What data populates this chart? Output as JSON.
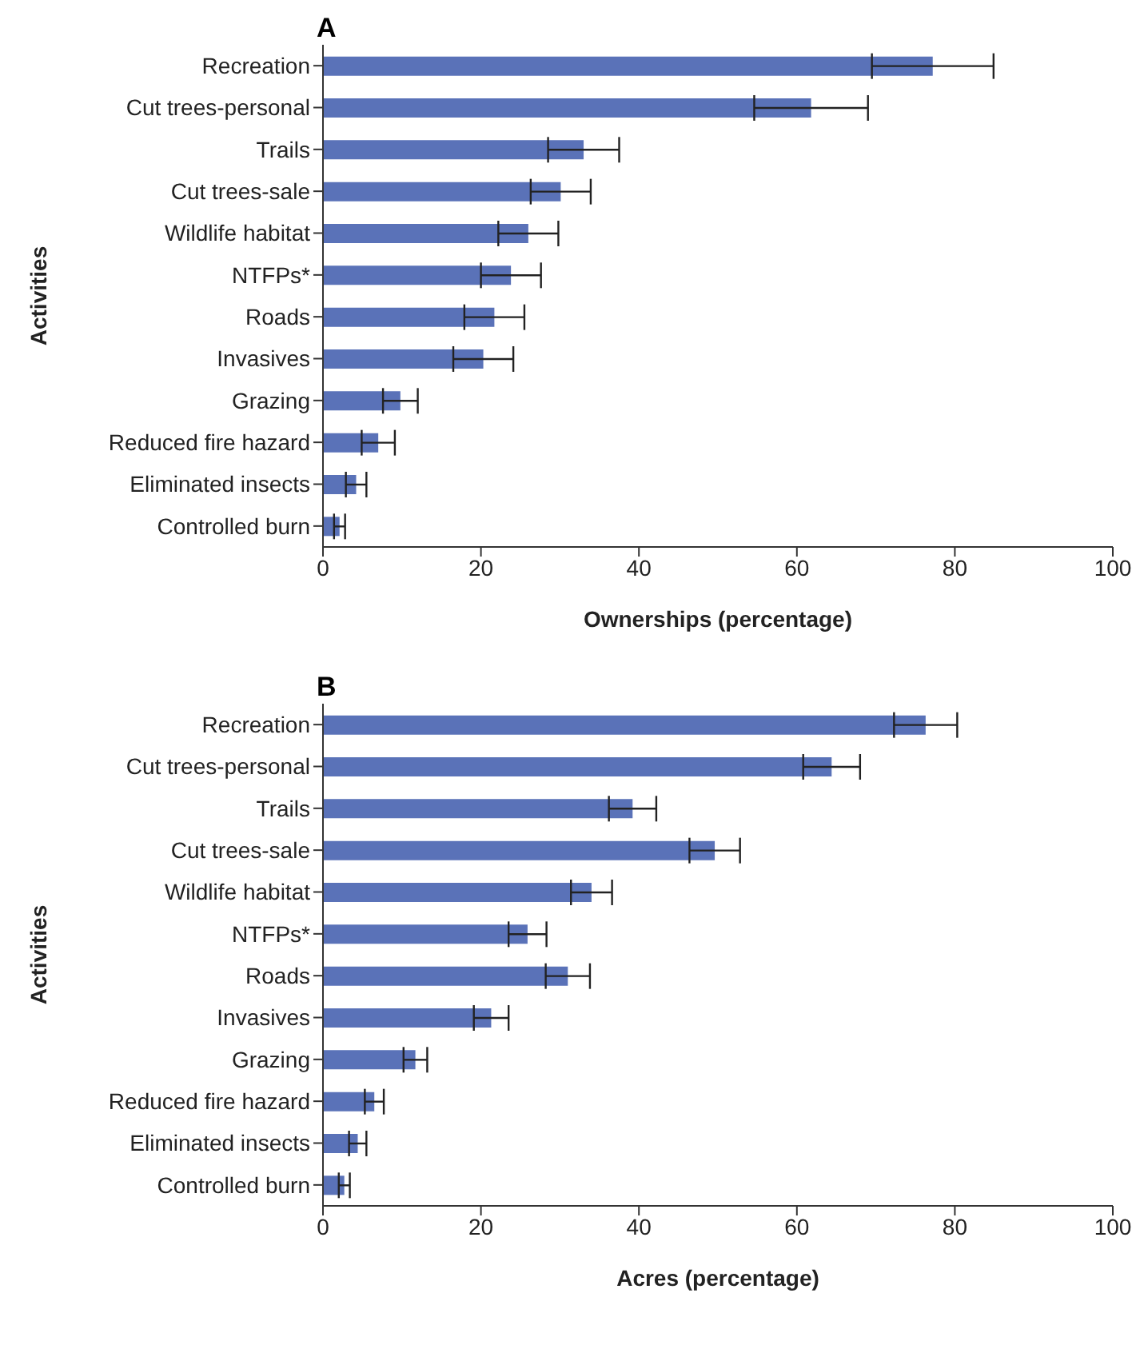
{
  "chart_data": [
    {
      "type": "bar",
      "orientation": "horizontal",
      "title": "A",
      "xlabel": "Ownerships (percentage)",
      "ylabel": "Activities",
      "categories": [
        "Recreation",
        "Cut trees-personal",
        "Trails",
        "Cut trees-sale",
        "Wildlife habitat",
        "NTFPs*",
        "Roads",
        "Invasives",
        "Grazing",
        "Reduced fire hazard",
        "Eliminated insects",
        "Controlled burn"
      ],
      "values": [
        77.2,
        61.8,
        33.0,
        30.1,
        26.0,
        23.8,
        21.7,
        20.3,
        9.8,
        7.0,
        4.2,
        2.1
      ],
      "errors": [
        7.7,
        7.2,
        4.5,
        3.8,
        3.8,
        3.8,
        3.8,
        3.8,
        2.2,
        2.1,
        1.3,
        0.7
      ],
      "color": "#5a72b8",
      "xlim": [
        0,
        100
      ],
      "xticks": [
        0,
        20,
        40,
        60,
        80,
        100
      ],
      "grid": false
    },
    {
      "type": "bar",
      "orientation": "horizontal",
      "title": "B",
      "xlabel": "Acres (percentage)",
      "ylabel": "Activities",
      "categories": [
        "Recreation",
        "Cut trees-personal",
        "Trails",
        "Cut trees-sale",
        "Wildlife habitat",
        "NTFPs*",
        "Roads",
        "Invasives",
        "Grazing",
        "Reduced fire hazard",
        "Eliminated insects",
        "Controlled burn"
      ],
      "values": [
        76.3,
        64.4,
        39.2,
        49.6,
        34.0,
        25.9,
        31.0,
        21.3,
        11.7,
        6.5,
        4.4,
        2.7
      ],
      "errors": [
        4,
        3.6,
        3,
        3.2,
        2.6,
        2.4,
        2.8,
        2.2,
        1.5,
        1.2,
        1.1,
        0.7
      ],
      "color": "#5a72b8",
      "xlim": [
        0,
        100
      ],
      "xticks": [
        0,
        20,
        40,
        60,
        80,
        100
      ],
      "grid": false
    }
  ]
}
